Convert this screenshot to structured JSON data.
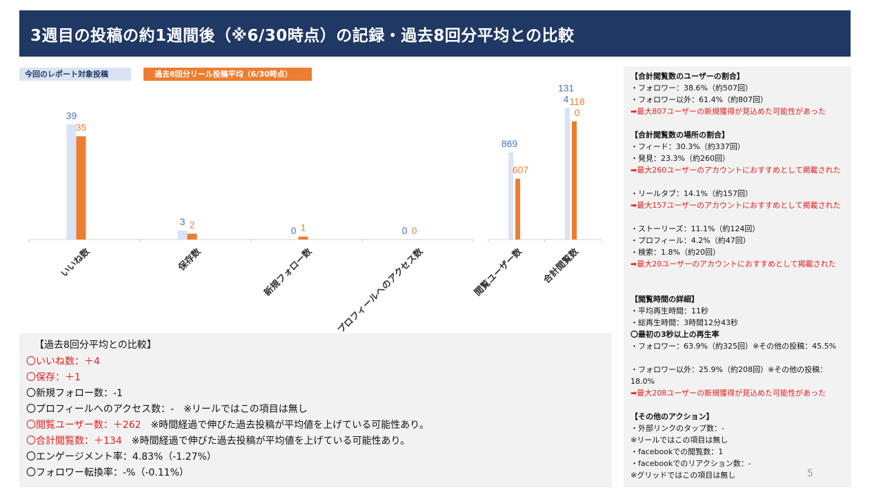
{
  "header": {
    "title": "3週目の投稿の約1週間後（※6/30時点）の記録・過去8回分平均との比較"
  },
  "legend": {
    "current": "今回のレポート対象投稿",
    "average": "過去8回分リール投稿平均（6/30時点）"
  },
  "colors": {
    "current": "#dae3f3",
    "current_label": "#4472c4",
    "average": "#ed7d31",
    "header_bg": "#1f3864",
    "alert": "#e02020"
  },
  "chart_data": [
    {
      "type": "bar",
      "categories": [
        "いいね数",
        "保存数",
        "新規フォロー数",
        "プロフィールへのアクセス数"
      ],
      "series": [
        {
          "name": "今回のレポート対象投稿",
          "values": [
            39,
            3,
            0,
            0
          ]
        },
        {
          "name": "過去8回分リール投稿平均（6/30時点）",
          "values": [
            35,
            2,
            1,
            0
          ]
        }
      ],
      "ylim": [
        0,
        40
      ]
    },
    {
      "type": "bar",
      "categories": [
        "閲覧ユーザー数",
        "合計閲覧数"
      ],
      "series": [
        {
          "name": "今回のレポート対象投稿",
          "values": [
            869,
            1314
          ],
          "labels": [
            "869",
            "131\n4"
          ]
        },
        {
          "name": "過去8回分リール投稿平均（6/30時点）",
          "values": [
            607,
            1180
          ],
          "labels": [
            "607",
            "118\n0"
          ]
        }
      ],
      "ylim": [
        0,
        1330
      ]
    }
  ],
  "comparison": {
    "title": "【過去8回分平均との比較】",
    "lines": [
      {
        "text": "〇いいね数：＋4",
        "note": "",
        "highlight": true
      },
      {
        "text": "〇保存：＋1",
        "note": "",
        "highlight": true
      },
      {
        "text": "〇新規フォロー数：-1",
        "note": "",
        "highlight": false
      },
      {
        "text": "〇プロフィールへのアクセス数：-",
        "note": "※リールではこの項目は無し",
        "highlight": false
      },
      {
        "text": "〇閲覧ユーザー数：＋262",
        "note": "※時間経過で伸びた過去投稿が平均値を上げている可能性あり。",
        "highlight": true
      },
      {
        "text": "〇合計閲覧数：＋134",
        "note": "※時間経過で伸びた過去投稿が平均値を上げている可能性あり。",
        "highlight": true
      },
      {
        "text": "〇エンゲージメント率：4.83%（-1.27%）",
        "note": "",
        "highlight": false
      },
      {
        "text": "〇フォロワー転換率：-%（-0.11%）",
        "note": "",
        "highlight": false
      }
    ]
  },
  "sidebar": {
    "lines": [
      {
        "text": "【合計閲覧数のユーザーの割合】",
        "style": "head"
      },
      {
        "text": "・フォロワー：38.6%（約507回）",
        "style": "normal"
      },
      {
        "text": "・フォロワー以外：61.4%（約807回）",
        "style": "normal"
      },
      {
        "text": "➡最大807ユーザーの新規獲得が見込めた可能性があった",
        "style": "red"
      },
      {
        "text": "",
        "style": "blank"
      },
      {
        "text": "【合計閲覧数の場所の割合】",
        "style": "head"
      },
      {
        "text": "・フィード：30.3%（約337回）",
        "style": "normal"
      },
      {
        "text": "・発見：23.3%（約260回）",
        "style": "normal"
      },
      {
        "text": "➡最大260ユーザーのアカウントにおすすめとして掲載された",
        "style": "red",
        "wrap": true
      },
      {
        "text": "・リールタブ：14.1%（約157回）",
        "style": "normal"
      },
      {
        "text": "➡最大157ユーザーのアカウントにおすすめとして掲載された",
        "style": "red",
        "wrap": true
      },
      {
        "text": "・ストーリーズ：11.1%（約124回）",
        "style": "normal"
      },
      {
        "text": "・プロフィール：4.2%（約47回）",
        "style": "normal"
      },
      {
        "text": "・検索：1.8%（約20回）",
        "style": "normal"
      },
      {
        "text": "➡最大20ユーザーのアカウントにおすすめとして掲載された",
        "style": "red",
        "wrap": true
      },
      {
        "text": "",
        "style": "blank"
      },
      {
        "text": "【閲覧時間の詳細】",
        "style": "head"
      },
      {
        "text": "・平均再生時間：11秒",
        "style": "normal"
      },
      {
        "text": "・総再生時間：3時間12分43秒",
        "style": "normal"
      },
      {
        "text": "〇最初の3秒以上の再生率",
        "style": "head"
      },
      {
        "text": "・フォロワー：63.9%（約325回）※その他の投稿：45.5%",
        "style": "normal",
        "wrap": true
      },
      {
        "text": "・フォロワー以外：25.9%（約208回）※その他の投稿：18.0%",
        "style": "normal",
        "wrap": true
      },
      {
        "text": "➡最大208ユーザーの新規獲得が見込めた可能性があった",
        "style": "red"
      },
      {
        "text": "",
        "style": "blank"
      },
      {
        "text": "【その他のアクション】",
        "style": "head"
      },
      {
        "text": "・外部リンクのタップ数：-",
        "style": "normal"
      },
      {
        "text": "※リールではこの項目は無し",
        "style": "normal"
      },
      {
        "text": "・facebookでの閲覧数：1",
        "style": "normal"
      },
      {
        "text": "・facebookでのリアクション数：-",
        "style": "normal"
      },
      {
        "text": "※グリッドではこの項目は無し",
        "style": "normal"
      }
    ]
  },
  "page_number": "5"
}
